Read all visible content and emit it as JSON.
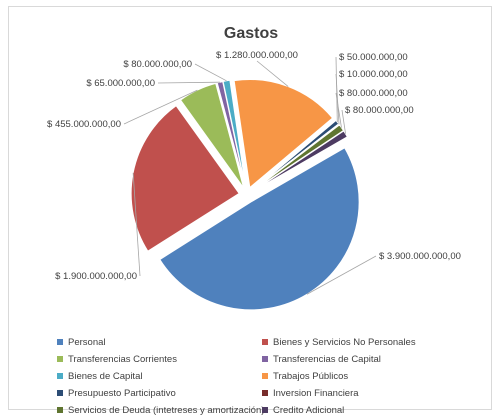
{
  "chart_data": {
    "type": "pie",
    "title": "Gastos",
    "exploded": true,
    "legend_position": "bottom",
    "slices": [
      {
        "name": "Personal",
        "value": 3900000000,
        "label": "$ 3.900.000.000,00",
        "color": "#4f81bd"
      },
      {
        "name": "Bienes y Servicios No Personales",
        "value": 1900000000,
        "label": "$ 1.900.000.000,00",
        "color": "#c0504d"
      },
      {
        "name": "Transferencias Corrientes",
        "value": 455000000,
        "label": "$ 455.000.000,00",
        "color": "#9bbb59"
      },
      {
        "name": "Transferencias de Capital",
        "value": 65000000,
        "label": "$ 65.000.000,00",
        "color": "#8064a2"
      },
      {
        "name": "Bienes de Capital",
        "value": 80000000,
        "label": "$ 80.000.000,00",
        "color": "#4bacc6"
      },
      {
        "name": "Trabajos Públicos",
        "value": 1280000000,
        "label": "$ 1.280.000.000,00",
        "color": "#f79646"
      },
      {
        "name": "Presupuesto Participativo",
        "value": 50000000,
        "label": "$ 50.000.000,00",
        "color": "#2c4d75"
      },
      {
        "name": "Inversion Financiera",
        "value": 10000000,
        "label": "$ 10.000.000,00",
        "color": "#772c2a"
      },
      {
        "name": "Servicios de Deuda (intetreses y amortización)",
        "value": 80000000,
        "label": "$ 80.000.000,00",
        "color": "#5f7530"
      },
      {
        "name": "Credito Adicional",
        "value": 80000000,
        "label": "$ 80.000.000,00",
        "color": "#4d3b62"
      }
    ]
  }
}
